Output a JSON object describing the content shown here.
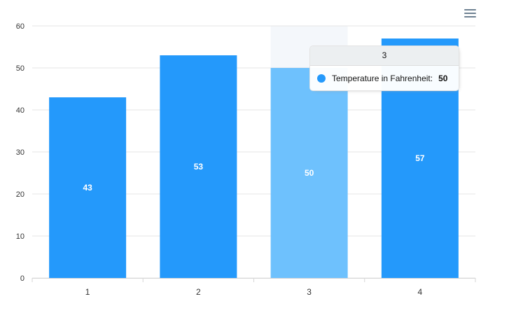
{
  "menu": {
    "icon": "hamburger-menu-icon"
  },
  "tooltip": {
    "title": "3",
    "series_name": "Temperature in Fahrenheit:",
    "value": "50"
  },
  "colors": {
    "bar": "#2499fb",
    "bar_active": "#6ec1fd",
    "hover_band": "#f4f7fb",
    "grid": "#e6e6e6",
    "axis": "#d6d6d6"
  },
  "chart_data": {
    "type": "bar",
    "categories": [
      "1",
      "2",
      "3",
      "4"
    ],
    "series": [
      {
        "name": "Temperature in Fahrenheit",
        "values": [
          43,
          53,
          50,
          57
        ]
      }
    ],
    "ylim": [
      0,
      60
    ],
    "yticks": [
      "0",
      "10",
      "20",
      "30",
      "40",
      "50",
      "60"
    ],
    "grid": true,
    "data_labels": [
      "43",
      "53",
      "50",
      "57"
    ],
    "hovered_index": 2
  }
}
